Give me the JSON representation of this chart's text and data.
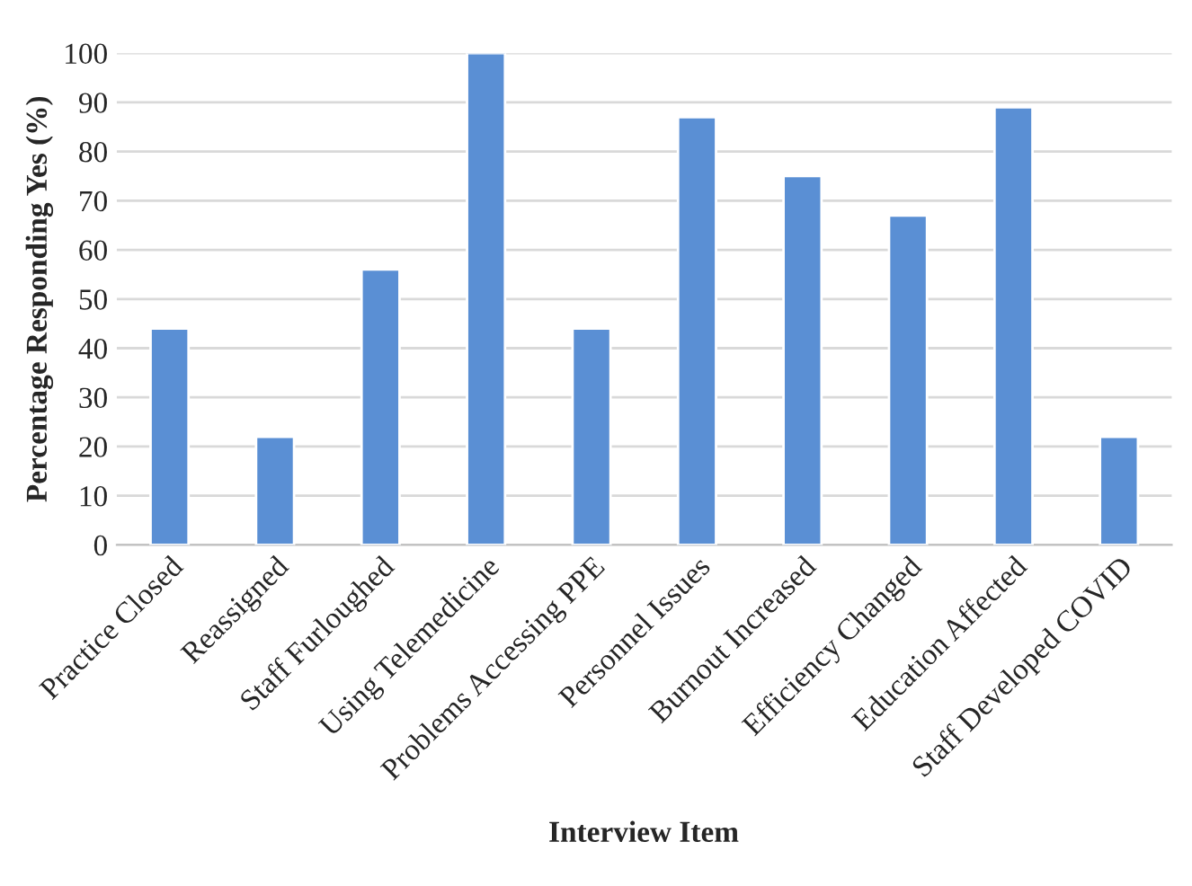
{
  "chart_data": {
    "type": "bar",
    "xlabel": "Interview Item",
    "ylabel": "Percentage Responding Yes (%)",
    "categories": [
      "Practice Closed",
      "Reassigned",
      "Staff Furloughed",
      "Using Telemedicine",
      "Problems Accessing PPE",
      "Personnel Issues",
      "Burnout Increased",
      "Efficiency Changed",
      "Education Affected",
      "Staff Developed COVID"
    ],
    "values": [
      44,
      22,
      56,
      100,
      44,
      87,
      75,
      67,
      89,
      22
    ],
    "color": "#5a8fd4",
    "ylim": [
      0,
      100
    ],
    "yticks": [
      0,
      10,
      20,
      30,
      40,
      50,
      60,
      70,
      80,
      90,
      100
    ],
    "grid": "y"
  }
}
